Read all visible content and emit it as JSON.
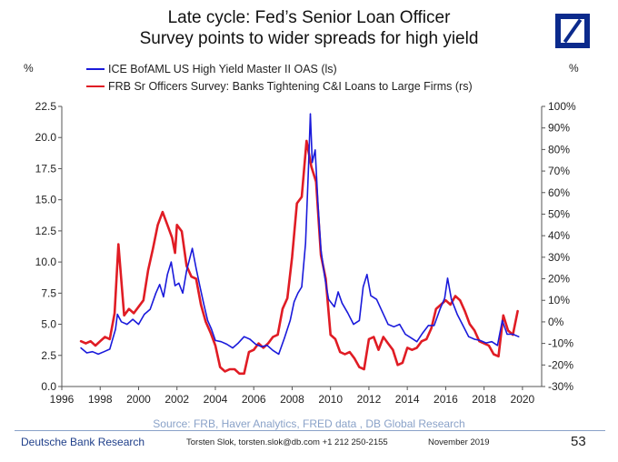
{
  "title_line1": "Late cycle: Fed’s Senior Loan Officer",
  "title_line2": "Survey points to wider spreads for high yield",
  "left_unit": "%",
  "right_unit": "%",
  "source": "Source: FRB, Haver Analytics, FRED data , DB Global Research",
  "footer": {
    "brand": "Deutsche Bank Research",
    "author": "Torsten Slok, torsten.slok@db.com  +1 212 250-2155",
    "date": "November 2019",
    "page": "53"
  },
  "colors": {
    "hy": "#1a1adb",
    "sloos": "#e01c24",
    "logo": "#0b2a8c"
  },
  "chart_data": {
    "type": "line",
    "title": "Late cycle: Fed’s Senior Loan Officer Survey points to wider spreads for high yield",
    "x_range": [
      1996,
      2021
    ],
    "x_ticks": [
      "1996",
      "1998",
      "2000",
      "2002",
      "2004",
      "2006",
      "2008",
      "2010",
      "2012",
      "2014",
      "2016",
      "2018",
      "2020"
    ],
    "y_left_range": [
      0,
      22.5
    ],
    "y_left_ticks": [
      "0.0",
      "2.5",
      "5.0",
      "7.5",
      "10.0",
      "12.5",
      "15.0",
      "17.5",
      "20.0",
      "22.5"
    ],
    "y_right_range": [
      -30,
      100
    ],
    "y_right_ticks": [
      "-30%",
      "-20%",
      "-10%",
      "0%",
      "10%",
      "20%",
      "30%",
      "40%",
      "50%",
      "60%",
      "70%",
      "80%",
      "90%",
      "100%"
    ],
    "series": [
      {
        "name": "ICE BofAML US High Yield Master II OAS (ls)",
        "axis": "left",
        "color": "#1a1adb",
        "points": [
          [
            1997.0,
            3.1
          ],
          [
            1997.3,
            2.7
          ],
          [
            1997.6,
            2.8
          ],
          [
            1997.9,
            2.6
          ],
          [
            1998.2,
            2.8
          ],
          [
            1998.5,
            3.0
          ],
          [
            1998.8,
            4.6
          ],
          [
            1998.9,
            5.8
          ],
          [
            1999.1,
            5.2
          ],
          [
            1999.4,
            5.0
          ],
          [
            1999.7,
            5.4
          ],
          [
            2000.0,
            5.0
          ],
          [
            2000.3,
            5.8
          ],
          [
            2000.6,
            6.2
          ],
          [
            2000.9,
            7.5
          ],
          [
            2001.1,
            8.2
          ],
          [
            2001.3,
            7.2
          ],
          [
            2001.5,
            9.0
          ],
          [
            2001.7,
            10.0
          ],
          [
            2001.9,
            8.1
          ],
          [
            2002.1,
            8.3
          ],
          [
            2002.3,
            7.5
          ],
          [
            2002.5,
            9.3
          ],
          [
            2002.7,
            10.5
          ],
          [
            2002.8,
            11.1
          ],
          [
            2003.0,
            9.5
          ],
          [
            2003.2,
            8.0
          ],
          [
            2003.4,
            6.6
          ],
          [
            2003.6,
            5.3
          ],
          [
            2003.8,
            4.6
          ],
          [
            2004.0,
            3.7
          ],
          [
            2004.3,
            3.6
          ],
          [
            2004.6,
            3.4
          ],
          [
            2004.9,
            3.1
          ],
          [
            2005.2,
            3.5
          ],
          [
            2005.5,
            4.0
          ],
          [
            2005.8,
            3.8
          ],
          [
            2006.1,
            3.4
          ],
          [
            2006.4,
            3.2
          ],
          [
            2006.7,
            3.3
          ],
          [
            2007.0,
            2.9
          ],
          [
            2007.3,
            2.6
          ],
          [
            2007.6,
            3.9
          ],
          [
            2007.9,
            5.3
          ],
          [
            2008.1,
            6.8
          ],
          [
            2008.3,
            7.5
          ],
          [
            2008.5,
            8.0
          ],
          [
            2008.7,
            11.5
          ],
          [
            2008.85,
            17.5
          ],
          [
            2008.95,
            21.9
          ],
          [
            2009.05,
            18.0
          ],
          [
            2009.2,
            19.0
          ],
          [
            2009.35,
            14.5
          ],
          [
            2009.5,
            11.0
          ],
          [
            2009.7,
            8.8
          ],
          [
            2009.9,
            7.0
          ],
          [
            2010.2,
            6.4
          ],
          [
            2010.4,
            7.6
          ],
          [
            2010.6,
            6.7
          ],
          [
            2010.9,
            5.9
          ],
          [
            2011.2,
            5.0
          ],
          [
            2011.5,
            5.3
          ],
          [
            2011.7,
            8.0
          ],
          [
            2011.9,
            9.0
          ],
          [
            2012.1,
            7.3
          ],
          [
            2012.4,
            7.0
          ],
          [
            2012.7,
            6.0
          ],
          [
            2013.0,
            5.0
          ],
          [
            2013.3,
            4.8
          ],
          [
            2013.6,
            5.0
          ],
          [
            2013.9,
            4.2
          ],
          [
            2014.2,
            3.9
          ],
          [
            2014.5,
            3.6
          ],
          [
            2014.8,
            4.3
          ],
          [
            2015.1,
            4.9
          ],
          [
            2015.4,
            4.9
          ],
          [
            2015.7,
            6.2
          ],
          [
            2015.95,
            7.1
          ],
          [
            2016.1,
            8.7
          ],
          [
            2016.3,
            7.0
          ],
          [
            2016.6,
            5.8
          ],
          [
            2016.9,
            4.9
          ],
          [
            2017.2,
            4.0
          ],
          [
            2017.5,
            3.8
          ],
          [
            2017.8,
            3.7
          ],
          [
            2018.1,
            3.5
          ],
          [
            2018.4,
            3.6
          ],
          [
            2018.7,
            3.3
          ],
          [
            2018.95,
            5.3
          ],
          [
            2019.2,
            4.2
          ],
          [
            2019.5,
            4.2
          ],
          [
            2019.8,
            4.0
          ]
        ]
      },
      {
        "name": "FRB Sr Officers Survey: Banks Tightening C&I Loans to Large Firms (rs)",
        "axis": "right",
        "color": "#e01c24",
        "points": [
          [
            1997.0,
            -9
          ],
          [
            1997.25,
            -10
          ],
          [
            1997.5,
            -9
          ],
          [
            1997.75,
            -11
          ],
          [
            1998.0,
            -9
          ],
          [
            1998.25,
            -7
          ],
          [
            1998.5,
            -8
          ],
          [
            1998.75,
            4
          ],
          [
            1998.95,
            36
          ],
          [
            1999.25,
            3
          ],
          [
            1999.5,
            6
          ],
          [
            1999.75,
            4
          ],
          [
            2000.0,
            7
          ],
          [
            2000.25,
            10
          ],
          [
            2000.5,
            24
          ],
          [
            2000.75,
            34
          ],
          [
            2001.0,
            45
          ],
          [
            2001.25,
            51
          ],
          [
            2001.5,
            45
          ],
          [
            2001.75,
            39
          ],
          [
            2001.9,
            32
          ],
          [
            2002.0,
            45
          ],
          [
            2002.25,
            42
          ],
          [
            2002.5,
            26
          ],
          [
            2002.75,
            21
          ],
          [
            2003.0,
            20
          ],
          [
            2003.25,
            8
          ],
          [
            2003.5,
            0
          ],
          [
            2003.75,
            -5
          ],
          [
            2004.0,
            -11
          ],
          [
            2004.25,
            -21
          ],
          [
            2004.5,
            -23
          ],
          [
            2004.75,
            -22
          ],
          [
            2005.0,
            -22
          ],
          [
            2005.25,
            -24
          ],
          [
            2005.5,
            -24
          ],
          [
            2005.75,
            -14
          ],
          [
            2006.0,
            -13
          ],
          [
            2006.25,
            -10
          ],
          [
            2006.5,
            -12
          ],
          [
            2006.75,
            -10
          ],
          [
            2007.0,
            -7
          ],
          [
            2007.25,
            -6
          ],
          [
            2007.5,
            6
          ],
          [
            2007.75,
            11
          ],
          [
            2008.0,
            30
          ],
          [
            2008.25,
            55
          ],
          [
            2008.5,
            58
          ],
          [
            2008.75,
            84
          ],
          [
            2009.0,
            72
          ],
          [
            2009.25,
            65
          ],
          [
            2009.5,
            31
          ],
          [
            2009.75,
            20
          ],
          [
            2010.0,
            -6
          ],
          [
            2010.25,
            -8
          ],
          [
            2010.5,
            -14
          ],
          [
            2010.75,
            -15
          ],
          [
            2011.0,
            -14
          ],
          [
            2011.25,
            -17
          ],
          [
            2011.5,
            -21
          ],
          [
            2011.75,
            -22
          ],
          [
            2012.0,
            -8
          ],
          [
            2012.25,
            -7
          ],
          [
            2012.5,
            -13
          ],
          [
            2012.75,
            -7
          ],
          [
            2013.0,
            -10
          ],
          [
            2013.25,
            -13
          ],
          [
            2013.5,
            -20
          ],
          [
            2013.75,
            -19
          ],
          [
            2014.0,
            -12
          ],
          [
            2014.25,
            -13
          ],
          [
            2014.5,
            -12
          ],
          [
            2014.75,
            -9
          ],
          [
            2015.0,
            -8
          ],
          [
            2015.25,
            -3
          ],
          [
            2015.5,
            6
          ],
          [
            2015.75,
            8
          ],
          [
            2016.0,
            10
          ],
          [
            2016.25,
            8
          ],
          [
            2016.5,
            12
          ],
          [
            2016.75,
            10
          ],
          [
            2017.0,
            5
          ],
          [
            2017.25,
            -1
          ],
          [
            2017.5,
            -4
          ],
          [
            2017.75,
            -9
          ],
          [
            2018.0,
            -10
          ],
          [
            2018.25,
            -11
          ],
          [
            2018.5,
            -15
          ],
          [
            2018.75,
            -16
          ],
          [
            2019.0,
            3
          ],
          [
            2019.25,
            -4
          ],
          [
            2019.5,
            -6
          ],
          [
            2019.75,
            5
          ]
        ]
      }
    ]
  }
}
